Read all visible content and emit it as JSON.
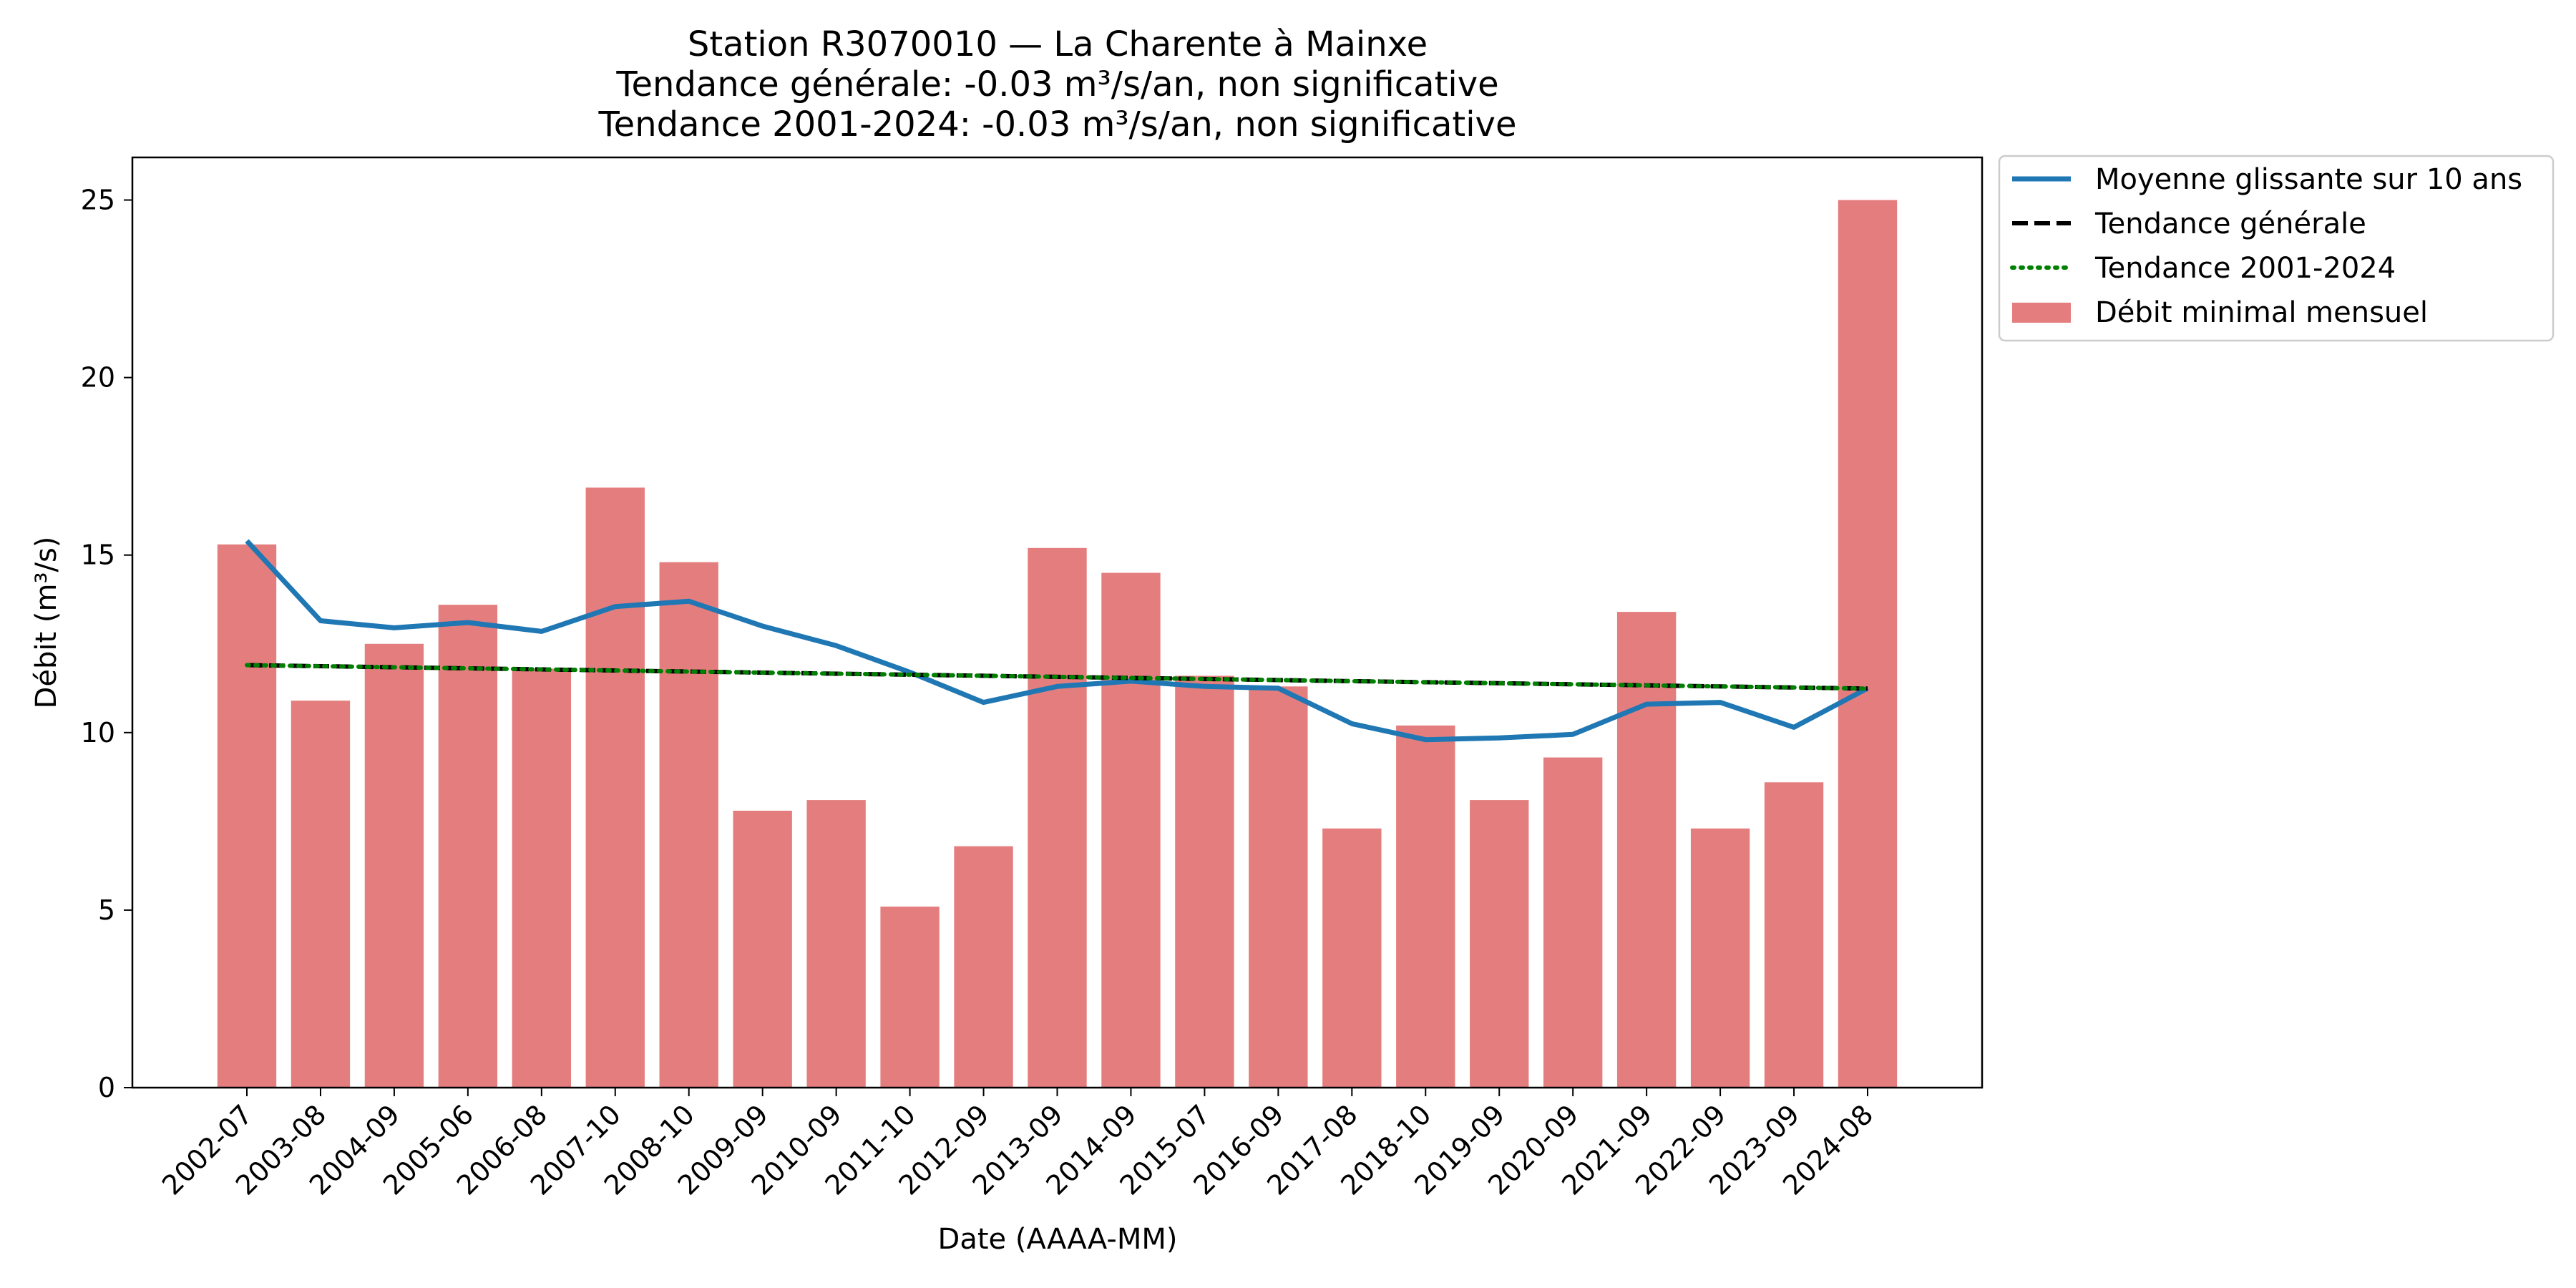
{
  "chart_data": {
    "type": "bar",
    "title_lines": [
      "Station R3070010 — La Charente à Mainxe",
      "Tendance générale: -0.03 m³/s/an, non significative",
      "Tendance 2001-2024: -0.03 m³/s/an, non significative"
    ],
    "xlabel": "Date (AAAA-MM)",
    "ylabel": "Débit (m³/s)",
    "ylim": [
      0,
      26.2
    ],
    "yticks": [
      0,
      5,
      10,
      15,
      20,
      25
    ],
    "categories": [
      "2002-07",
      "2003-08",
      "2004-09",
      "2005-06",
      "2006-08",
      "2007-10",
      "2008-10",
      "2009-09",
      "2010-09",
      "2011-10",
      "2012-09",
      "2013-09",
      "2014-09",
      "2015-07",
      "2016-09",
      "2017-08",
      "2018-10",
      "2019-09",
      "2020-09",
      "2021-09",
      "2022-09",
      "2023-09",
      "2024-08"
    ],
    "series": [
      {
        "name": "Débit minimal mensuel",
        "kind": "bar",
        "color": "#e47e7e",
        "values": [
          15.3,
          10.9,
          12.5,
          13.6,
          11.8,
          16.9,
          14.8,
          7.8,
          8.1,
          5.1,
          6.8,
          15.2,
          14.5,
          11.6,
          11.3,
          7.3,
          10.2,
          8.1,
          9.3,
          13.4,
          7.3,
          8.6,
          25.0
        ]
      },
      {
        "name": "Moyenne glissante sur 10 ans",
        "kind": "line",
        "color": "#1f77b4",
        "style": "solid",
        "values": [
          15.4,
          13.15,
          12.95,
          13.1,
          12.85,
          13.55,
          13.7,
          13.0,
          12.45,
          11.7,
          10.85,
          11.3,
          11.45,
          11.3,
          11.25,
          10.25,
          9.8,
          9.85,
          9.95,
          10.8,
          10.85,
          10.15,
          11.25
        ]
      },
      {
        "name": "Tendance générale",
        "kind": "line",
        "color": "#000000",
        "style": "dashed",
        "values": [
          11.9,
          11.87,
          11.84,
          11.81,
          11.78,
          11.75,
          11.72,
          11.69,
          11.66,
          11.63,
          11.6,
          11.57,
          11.54,
          11.51,
          11.48,
          11.45,
          11.42,
          11.39,
          11.36,
          11.33,
          11.3,
          11.27,
          11.24
        ]
      },
      {
        "name": "Tendance 2001-2024",
        "kind": "line",
        "color": "#008000",
        "style": "dotted",
        "values": [
          11.9,
          11.87,
          11.84,
          11.81,
          11.78,
          11.75,
          11.72,
          11.69,
          11.66,
          11.63,
          11.6,
          11.57,
          11.54,
          11.51,
          11.48,
          11.45,
          11.42,
          11.39,
          11.36,
          11.33,
          11.3,
          11.27,
          11.24
        ]
      }
    ],
    "legend": {
      "placement": "outside-top-right",
      "order": [
        "Moyenne glissante sur 10 ans",
        "Tendance générale",
        "Tendance 2001-2024",
        "Débit minimal mensuel"
      ]
    },
    "grid": false
  }
}
